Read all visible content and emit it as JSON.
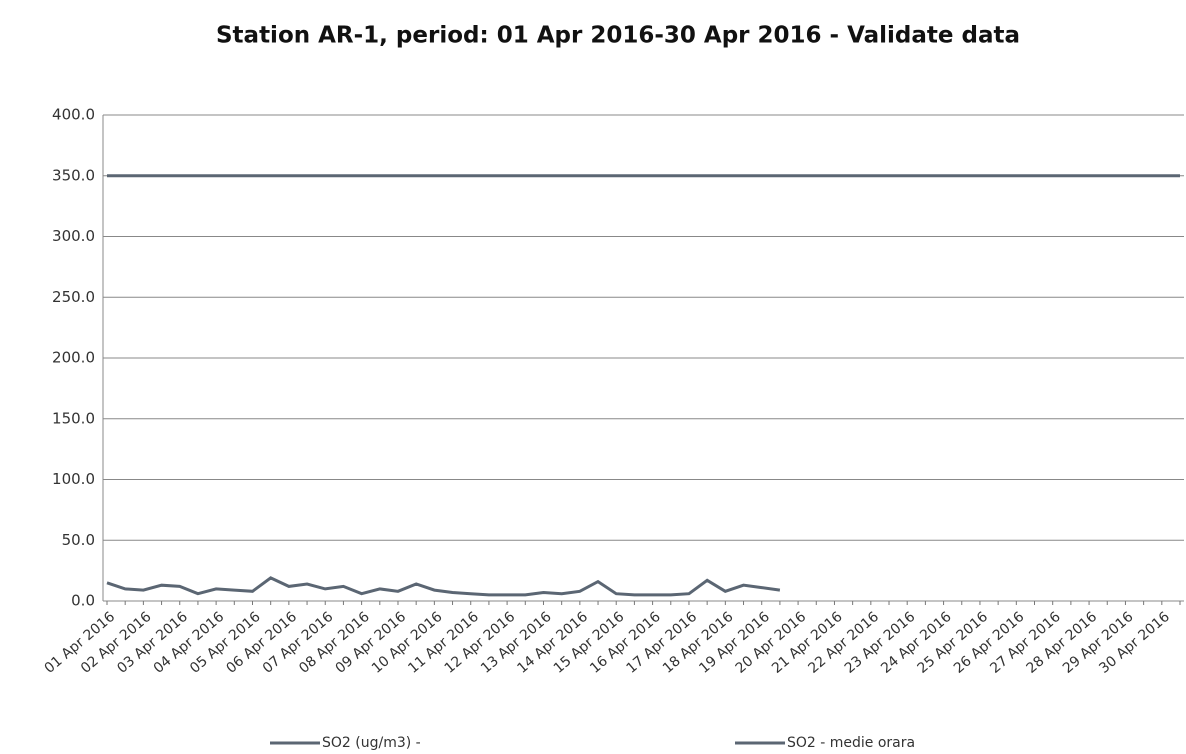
{
  "chart_data": {
    "type": "line",
    "title": "Station AR-1, period: 01 Apr 2016-30 Apr 2016 - Validate data",
    "categories": [
      "01 Apr 2016",
      null,
      "02 Apr 2016",
      null,
      "03 Apr 2016",
      null,
      "04 Apr 2016",
      null,
      "05 Apr 2016",
      null,
      "06 Apr 2016",
      null,
      "07 Apr 2016",
      null,
      "08 Apr 2016",
      null,
      "09 Apr 2016",
      null,
      "10 Apr 2016",
      null,
      "11 Apr 2016",
      null,
      "12 Apr 2016",
      null,
      "13 Apr 2016",
      null,
      "14 Apr 2016",
      null,
      "15 Apr 2016",
      null,
      "16 Apr 2016",
      null,
      "17 Apr 2016",
      null,
      "18 Apr 2016",
      null,
      "19 Apr 2016",
      null,
      "20 Apr 2016",
      null,
      "21 Apr 2016",
      null,
      "22 Apr 2016",
      null,
      "23 Apr 2016",
      null,
      "24 Apr 2016",
      null,
      "25 Apr 2016",
      null,
      "26 Apr 2016",
      null,
      "27 Apr 2016",
      null,
      "28 Apr 2016",
      null,
      "29 Apr 2016",
      null,
      "30 Apr 2016",
      null
    ],
    "series": [
      {
        "name": "SO2 (ug/m3)  -",
        "color": "#5b6673",
        "values": [
          15,
          10,
          9,
          13,
          12,
          6,
          10,
          9,
          8,
          19,
          12,
          14,
          10,
          12,
          6,
          10,
          8,
          14,
          9,
          7,
          6,
          5,
          5,
          5,
          7,
          6,
          8,
          16,
          6,
          5,
          5,
          5,
          6,
          17,
          8,
          13,
          11,
          9,
          null,
          null,
          null,
          null,
          null,
          null,
          null,
          null,
          null,
          null,
          null,
          null,
          null,
          null,
          null,
          null,
          null,
          null,
          null,
          null,
          null,
          null
        ]
      },
      {
        "name": "SO2 - medie orara",
        "color": "#5b6673",
        "values": [
          350,
          350,
          350,
          350,
          350,
          350,
          350,
          350,
          350,
          350,
          350,
          350,
          350,
          350,
          350,
          350,
          350,
          350,
          350,
          350,
          350,
          350,
          350,
          350,
          350,
          350,
          350,
          350,
          350,
          350,
          350,
          350,
          350,
          350,
          350,
          350,
          350,
          350,
          350,
          350,
          350,
          350,
          350,
          350,
          350,
          350,
          350,
          350,
          350,
          350,
          350,
          350,
          350,
          350,
          350,
          350,
          350,
          350,
          350,
          350
        ]
      }
    ],
    "ylim": [
      0,
      400
    ],
    "yticks": [
      {
        "value": 0,
        "label": "0.0"
      },
      {
        "value": 50,
        "label": "50.0"
      },
      {
        "value": 100,
        "label": "100.0"
      },
      {
        "value": 150,
        "label": "150.0"
      },
      {
        "value": 200,
        "label": "200.0"
      },
      {
        "value": 250,
        "label": "250.0"
      },
      {
        "value": 300,
        "label": "300.0"
      },
      {
        "value": 350,
        "label": "350.0"
      },
      {
        "value": 400,
        "label": "400.0"
      }
    ],
    "grid": true
  }
}
